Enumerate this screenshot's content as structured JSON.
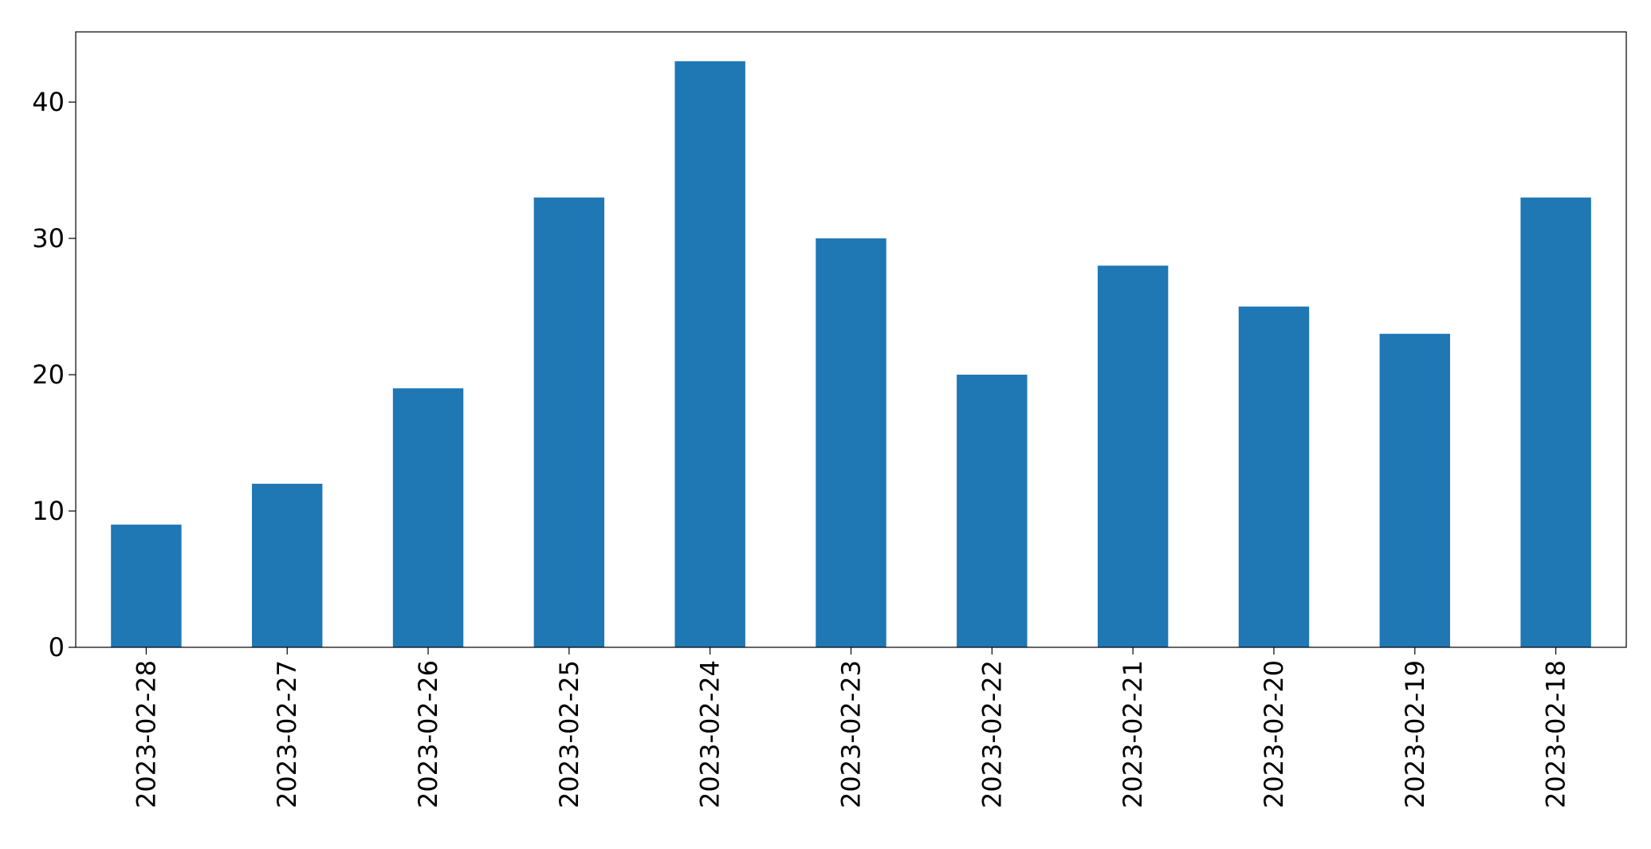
{
  "chart_data": {
    "type": "bar",
    "title": "",
    "xlabel": "",
    "ylabel": "",
    "categories": [
      "2023-02-28",
      "2023-02-27",
      "2023-02-26",
      "2023-02-25",
      "2023-02-24",
      "2023-02-23",
      "2023-02-22",
      "2023-02-21",
      "2023-02-20",
      "2023-02-19",
      "2023-02-18"
    ],
    "values": [
      9,
      12,
      19,
      33,
      43,
      30,
      20,
      28,
      25,
      23,
      33
    ],
    "ylim": [
      0,
      45.15
    ],
    "yticks": [
      0,
      10,
      20,
      30,
      40
    ],
    "bar_color": "#1f77b4",
    "grid": false,
    "legend": "none"
  }
}
